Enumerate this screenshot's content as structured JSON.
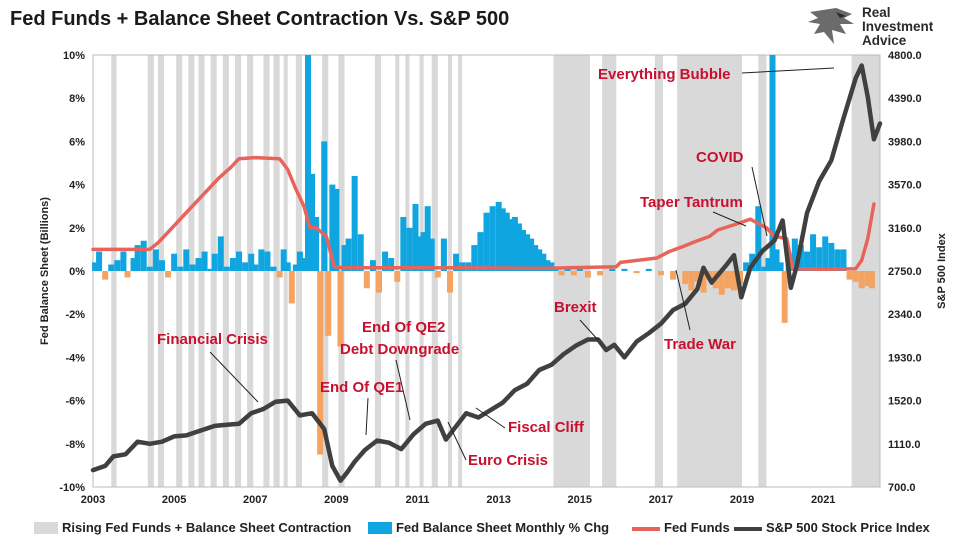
{
  "page": {
    "title": "Fed Funds + Balance Sheet Contraction Vs. S&P 500"
  },
  "logo": {
    "line1": "Real",
    "line2": "Investment",
    "line3": "Advice"
  },
  "colors": {
    "shade": "#d9d9d9",
    "bs_pos": "#0ea5e0",
    "bs_neg": "#f4a460",
    "fedfunds": "#e8645a",
    "spx": "#404040",
    "ann": "#c8102e"
  },
  "chart_data": {
    "type": "combo",
    "y_left": {
      "label": "Fed Balance Sheet (Billions)",
      "min": -10,
      "max": 10,
      "ticks": [
        "10%",
        "8%",
        "6%",
        "4%",
        "2%",
        "0%",
        "-2%",
        "-4%",
        "-6%",
        "-8%",
        "-10%"
      ]
    },
    "y_right": {
      "label": "S&P 500 Index",
      "min": 700,
      "max": 4800,
      "ticks": [
        "4800.0",
        "4390.0",
        "3980.0",
        "3570.0",
        "3160.0",
        "2750.0",
        "2340.0",
        "1930.0",
        "1520.0",
        "1110.0",
        "700.0"
      ]
    },
    "x": {
      "min": 2003,
      "max": 2022.4,
      "ticks": [
        "2003",
        "2005",
        "2007",
        "2009",
        "2011",
        "2013",
        "2015",
        "2017",
        "2019",
        "2021"
      ],
      "tick_years": [
        2003,
        2005,
        2007,
        2009,
        2011,
        2013,
        2015,
        2017,
        2019,
        2021
      ]
    },
    "shaded_periods": [
      [
        2003.45,
        2003.58
      ],
      [
        2004.35,
        2004.5
      ],
      [
        2004.6,
        2004.75
      ],
      [
        2005.05,
        2005.2
      ],
      [
        2005.35,
        2005.5
      ],
      [
        2005.6,
        2005.75
      ],
      [
        2005.9,
        2006.05
      ],
      [
        2006.2,
        2006.35
      ],
      [
        2006.5,
        2006.65
      ],
      [
        2006.8,
        2006.95
      ],
      [
        2007.2,
        2007.35
      ],
      [
        2007.45,
        2007.6
      ],
      [
        2007.7,
        2007.8
      ],
      [
        2008.0,
        2008.15
      ],
      [
        2008.65,
        2008.8
      ],
      [
        2009.05,
        2009.2
      ],
      [
        2009.95,
        2010.1
      ],
      [
        2010.45,
        2010.55
      ],
      [
        2010.7,
        2010.8
      ],
      [
        2011.05,
        2011.15
      ],
      [
        2011.35,
        2011.5
      ],
      [
        2011.75,
        2011.85
      ],
      [
        2012.0,
        2012.1
      ],
      [
        2014.35,
        2015.25
      ],
      [
        2015.55,
        2015.9
      ],
      [
        2016.85,
        2017.05
      ],
      [
        2017.4,
        2019.0
      ],
      [
        2019.4,
        2019.6
      ],
      [
        2021.7,
        2022.4
      ]
    ],
    "series": [
      {
        "name": "Fed Balance Sheet Monthly % Chg",
        "type": "bar",
        "x": [
          2003.05,
          2003.15,
          2003.3,
          2003.45,
          2003.6,
          2003.75,
          2003.85,
          2004.0,
          2004.1,
          2004.25,
          2004.4,
          2004.55,
          2004.7,
          2004.85,
          2005.0,
          2005.15,
          2005.3,
          2005.45,
          2005.6,
          2005.75,
          2005.9,
          2006.0,
          2006.15,
          2006.3,
          2006.45,
          2006.6,
          2006.75,
          2006.9,
          2007.0,
          2007.15,
          2007.3,
          2007.45,
          2007.6,
          2007.7,
          2007.8,
          2007.9,
          2008.0,
          2008.1,
          2008.2,
          2008.3,
          2008.4,
          2008.5,
          2008.6,
          2008.7,
          2008.8,
          2008.9,
          2009.0,
          2009.1,
          2009.2,
          2009.3,
          2009.45,
          2009.6,
          2009.75,
          2009.9,
          2010.05,
          2010.2,
          2010.35,
          2010.5,
          2010.65,
          2010.8,
          2010.95,
          2011.05,
          2011.15,
          2011.25,
          2011.35,
          2011.5,
          2011.65,
          2011.8,
          2011.95,
          2012.1,
          2012.25,
          2012.4,
          2012.55,
          2012.7,
          2012.85,
          2013.0,
          2013.1,
          2013.2,
          2013.3,
          2013.4,
          2013.5,
          2013.6,
          2013.7,
          2013.8,
          2013.9,
          2014.0,
          2014.1,
          2014.2,
          2014.3,
          2014.4,
          2014.55,
          2014.7,
          2014.85,
          2015.0,
          2015.2,
          2015.5,
          2015.8,
          2016.1,
          2016.4,
          2016.7,
          2017.0,
          2017.3,
          2017.6,
          2017.75,
          2017.9,
          2018.05,
          2018.2,
          2018.35,
          2018.5,
          2018.65,
          2018.8,
          2018.95,
          2019.1,
          2019.25,
          2019.4,
          2019.55,
          2019.65,
          2019.75,
          2019.85,
          2019.95,
          2020.05,
          2020.15,
          2020.3,
          2020.45,
          2020.6,
          2020.75,
          2020.9,
          2021.05,
          2021.2,
          2021.35,
          2021.5,
          2021.65,
          2021.8,
          2021.95,
          2022.1,
          2022.2
        ],
        "values": [
          0.4,
          0.9,
          -0.4,
          0.3,
          0.5,
          0.9,
          -0.3,
          0.6,
          1.2,
          1.4,
          0.2,
          1.0,
          0.5,
          -0.3,
          0.8,
          0.2,
          1.0,
          0.3,
          0.6,
          0.9,
          0.1,
          0.8,
          1.6,
          0.2,
          0.6,
          0.9,
          0.4,
          0.8,
          0.3,
          1.0,
          0.9,
          0.2,
          -0.3,
          1.0,
          0.4,
          -1.5,
          0.3,
          0.9,
          0.6,
          10.0,
          4.5,
          2.5,
          -8.5,
          6.0,
          -3.0,
          4.0,
          3.8,
          -3.5,
          1.2,
          1.5,
          4.4,
          1.7,
          -0.8,
          0.5,
          -1.0,
          0.9,
          0.6,
          -0.5,
          2.5,
          2.0,
          3.1,
          1.6,
          1.8,
          3.0,
          1.5,
          -0.3,
          1.5,
          -1.0,
          0.8,
          0.4,
          0.4,
          1.2,
          1.8,
          2.7,
          3.0,
          3.2,
          2.9,
          2.7,
          2.4,
          2.5,
          2.2,
          1.9,
          1.7,
          1.5,
          1.2,
          1.0,
          0.8,
          0.5,
          0.4,
          0.2,
          -0.2,
          0.1,
          -0.2,
          0.1,
          -0.3,
          -0.2,
          0.1,
          0.1,
          -0.1,
          0.1,
          -0.2,
          -0.4,
          -0.6,
          -0.9,
          -0.5,
          -1.0,
          -0.4,
          -0.8,
          -1.1,
          -0.8,
          -0.9,
          -0.6,
          0.4,
          0.8,
          3.0,
          0.2,
          0.6,
          10.0,
          1.0,
          0.4,
          -2.4,
          0.8,
          1.5,
          1.2,
          0.9,
          1.7,
          1.1,
          1.6,
          1.3,
          1.0,
          1.0,
          -0.4,
          -0.5,
          -0.8,
          -0.7,
          -0.8
        ]
      },
      {
        "name": "Fed Funds",
        "type": "line",
        "x": [
          2003.0,
          2004.4,
          2004.6,
          2004.9,
          2005.2,
          2005.5,
          2005.8,
          2006.1,
          2006.4,
          2006.6,
          2007.0,
          2007.6,
          2007.8,
          2008.0,
          2008.2,
          2008.35,
          2008.5,
          2008.75,
          2008.95,
          2009.2,
          2010.0,
          2012.0,
          2014.0,
          2015.9,
          2016.0,
          2016.9,
          2017.2,
          2017.5,
          2017.9,
          2018.2,
          2018.4,
          2018.9,
          2019.2,
          2019.6,
          2019.8,
          2020.1,
          2020.25,
          2021.0,
          2021.8,
          2021.95,
          2022.1,
          2022.25
        ],
        "values": [
          1.0,
          1.0,
          1.3,
          1.9,
          2.5,
          3.1,
          3.7,
          4.3,
          4.8,
          5.2,
          5.25,
          5.2,
          4.7,
          3.8,
          3.0,
          2.0,
          2.0,
          1.6,
          0.2,
          0.15,
          0.15,
          0.15,
          0.12,
          0.2,
          0.4,
          0.6,
          0.9,
          1.1,
          1.4,
          1.6,
          1.9,
          2.2,
          2.4,
          2.0,
          1.6,
          1.5,
          0.1,
          0.08,
          0.1,
          0.5,
          1.5,
          3.1
        ]
      },
      {
        "name": "S&P 500 Stock Price Index",
        "type": "line",
        "x": [
          2003.0,
          2003.3,
          2003.5,
          2003.8,
          2004.1,
          2004.4,
          2004.7,
          2005.0,
          2005.3,
          2005.6,
          2006.0,
          2006.3,
          2006.6,
          2006.9,
          2007.2,
          2007.5,
          2007.8,
          2008.1,
          2008.4,
          2008.7,
          2008.9,
          2009.1,
          2009.25,
          2009.45,
          2009.7,
          2010.0,
          2010.3,
          2010.6,
          2010.9,
          2011.2,
          2011.5,
          2011.7,
          2011.9,
          2012.2,
          2012.5,
          2012.8,
          2013.1,
          2013.4,
          2013.7,
          2014.0,
          2014.3,
          2014.6,
          2014.9,
          2015.2,
          2015.45,
          2015.65,
          2015.85,
          2016.1,
          2016.4,
          2016.7,
          2017.0,
          2017.3,
          2017.6,
          2017.9,
          2018.05,
          2018.25,
          2018.6,
          2018.8,
          2018.98,
          2019.2,
          2019.5,
          2019.8,
          2020.0,
          2020.2,
          2020.35,
          2020.6,
          2020.9,
          2021.2,
          2021.5,
          2021.8,
          2021.95,
          2022.1,
          2022.25,
          2022.4
        ],
        "values": [
          860,
          900,
          990,
          1010,
          1130,
          1110,
          1130,
          1180,
          1190,
          1230,
          1280,
          1290,
          1300,
          1400,
          1440,
          1510,
          1520,
          1380,
          1400,
          1250,
          900,
          760,
          830,
          940,
          1050,
          1140,
          1120,
          1060,
          1200,
          1300,
          1330,
          1150,
          1250,
          1400,
          1360,
          1430,
          1500,
          1620,
          1680,
          1810,
          1860,
          1960,
          2040,
          2100,
          2100,
          2000,
          2050,
          1930,
          2080,
          2160,
          2250,
          2380,
          2440,
          2580,
          2780,
          2640,
          2800,
          2900,
          2500,
          2780,
          2940,
          3040,
          3230,
          2590,
          2800,
          3300,
          3600,
          3800,
          4200,
          4580,
          4700,
          4400,
          4000,
          4150
        ]
      }
    ],
    "annotations": [
      "Everything Bubble",
      "COVID",
      "Taper Tantrum",
      "Brexit",
      "Trade War",
      "Financial Crisis",
      "End Of QE2",
      "Debt Downgrade",
      "End Of QE1",
      "Fiscal Cliff",
      "Euro Crisis"
    ],
    "legend": [
      "Rising Fed Funds + Balance Sheet Contraction",
      "Fed Balance Sheet Monthly % Chg",
      "Fed Funds",
      "S&P 500 Stock Price Index"
    ]
  }
}
